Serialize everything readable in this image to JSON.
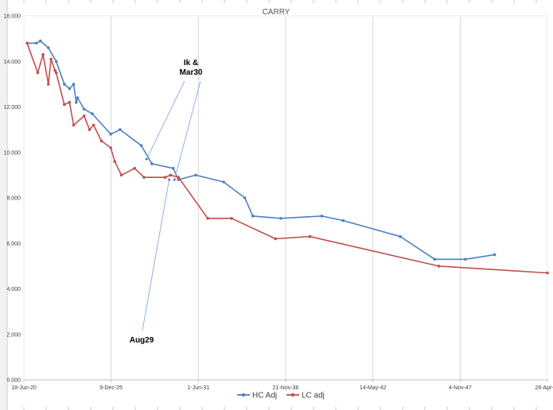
{
  "chart_data": {
    "type": "line",
    "title": "CARRY",
    "xlabel": "",
    "ylabel": "",
    "x_tick_labels": [
      "18-Jun-20",
      "9-Dec-25",
      "1-Jun-31",
      "21-Nov-36",
      "14-May-42",
      "4-Nov-47",
      "26-Apr-53"
    ],
    "y_tick_labels": [
      "0.000",
      "2.000",
      "4.000",
      "6.000",
      "8.000",
      "10.000",
      "12.000",
      "14.000",
      "16.000"
    ],
    "xlim": [
      "2020-06-18",
      "2053-04-26"
    ],
    "ylim": [
      0,
      16
    ],
    "grid": "vertical",
    "legend": "bottom",
    "colors": {
      "HC Adj": "#4f81bd",
      "LC adj": "#c0504d"
    },
    "series": [
      {
        "name": "HC Adj",
        "x": [
          "2020-09-01",
          "2021-04-01",
          "2021-07-01",
          "2022-01-01",
          "2022-07-01",
          "2023-01-01",
          "2023-05-01",
          "2023-08-01",
          "2023-10-01",
          "2023-11-01",
          "2024-04-01",
          "2024-10-01",
          "2025-12-01",
          "2026-07-01",
          "2027-11-01",
          "2028-07-01",
          "2029-11-01",
          "2030-03-01",
          "2031-04-01",
          "2033-01-01",
          "2034-05-01",
          "2034-11-01",
          "2036-08-01",
          "2039-03-01",
          "2040-07-01",
          "2044-02-01",
          "2046-04-01",
          "2048-03-01",
          "2050-01-01"
        ],
        "y": [
          14.8,
          14.8,
          14.9,
          14.6,
          14.0,
          13.0,
          12.8,
          13.0,
          12.2,
          12.4,
          11.9,
          11.7,
          10.8,
          11.0,
          10.3,
          9.5,
          9.3,
          8.8,
          9.0,
          8.7,
          8.0,
          7.2,
          7.1,
          7.2,
          7.0,
          6.3,
          5.3,
          5.3,
          5.5
        ]
      },
      {
        "name": "LC adj",
        "x": [
          "2020-09-01",
          "2021-05-01",
          "2021-09-01",
          "2022-01-01",
          "2022-03-01",
          "2022-06-01",
          "2022-07-01",
          "2023-01-01",
          "2023-05-01",
          "2023-08-01",
          "2024-04-01",
          "2024-08-01",
          "2024-11-01",
          "2025-05-01",
          "2025-12-01",
          "2026-03-01",
          "2026-08-01",
          "2027-06-01",
          "2028-01-01",
          "2029-05-01",
          "2029-09-01",
          "2030-03-01",
          "2032-01-01",
          "2033-07-01",
          "2036-04-01",
          "2038-06-01",
          "2046-07-01",
          "2053-04-26"
        ],
        "y": [
          14.8,
          13.5,
          14.3,
          13.0,
          14.1,
          13.6,
          13.5,
          12.1,
          12.2,
          11.2,
          11.6,
          11.0,
          11.2,
          10.5,
          10.2,
          9.6,
          9.0,
          9.3,
          8.9,
          8.9,
          9.0,
          8.9,
          7.1,
          7.1,
          6.2,
          6.3,
          5.0,
          4.7
        ]
      }
    ],
    "annotations": [
      {
        "text_lines": [
          "Ik &",
          "Mar30"
        ],
        "points_to": [
          [
            "2028-03-01",
            9.7
          ],
          [
            "2029-12-01",
            8.8
          ]
        ]
      },
      {
        "text_lines": [
          "Aug29"
        ],
        "points_to": [
          [
            "2029-08-01",
            8.8
          ]
        ]
      }
    ]
  }
}
